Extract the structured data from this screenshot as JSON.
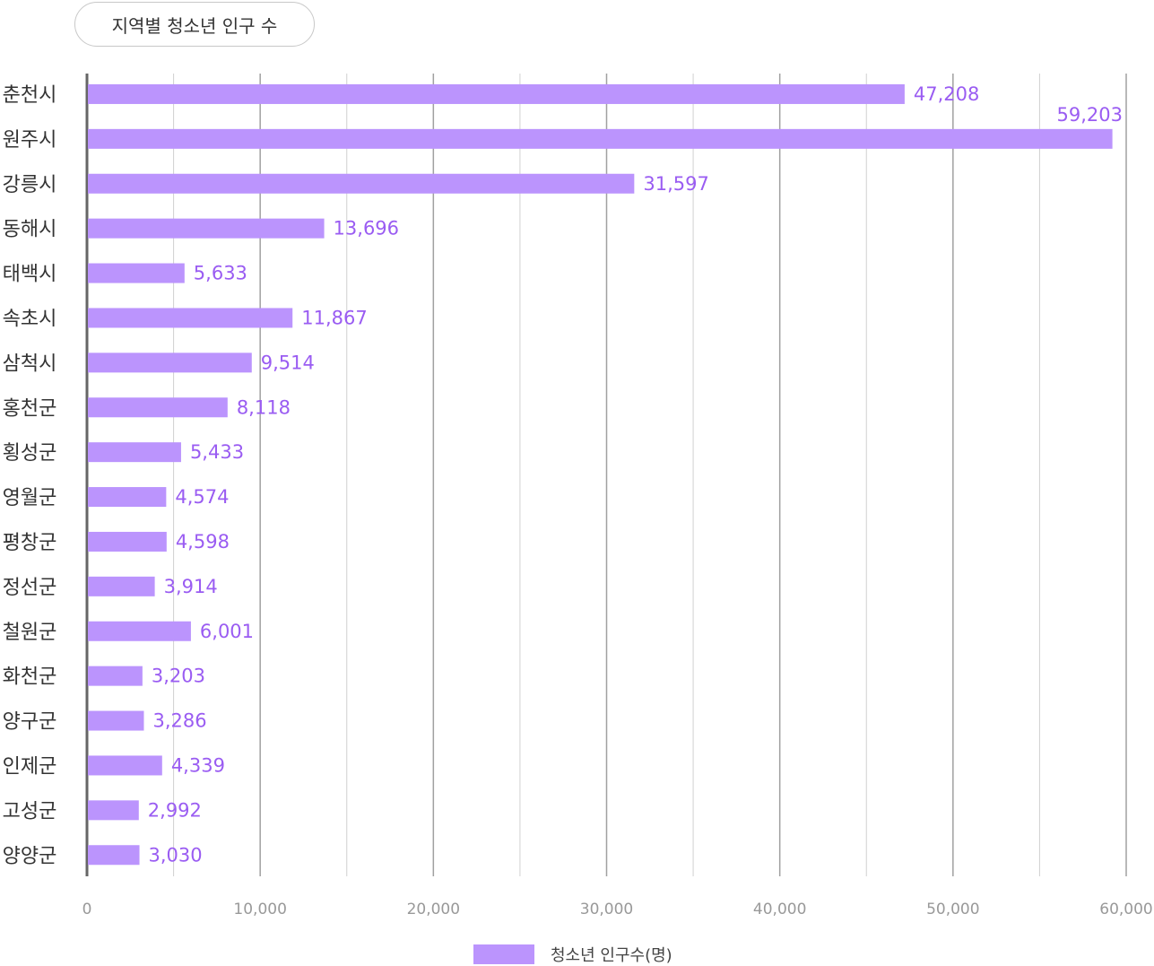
{
  "chart_data": {
    "type": "bar",
    "orientation": "horizontal",
    "title": "지역별 청소년 인구 수",
    "categories": [
      "춘천시",
      "원주시",
      "강릉시",
      "동해시",
      "태백시",
      "속초시",
      "삼척시",
      "홍천군",
      "횡성군",
      "영월군",
      "평창군",
      "정선군",
      "철원군",
      "화천군",
      "양구군",
      "인제군",
      "고성군",
      "양양군"
    ],
    "series": [
      {
        "name": "청소년 인구수(명)",
        "values": [
          47208,
          59203,
          31597,
          13696,
          5633,
          11867,
          9514,
          8118,
          5433,
          4574,
          4598,
          3914,
          6001,
          3203,
          3286,
          4339,
          2992,
          3030
        ],
        "labels": [
          "47,208",
          "59,203",
          "31,597",
          "13,696",
          "5,633",
          "11,867",
          "9,514",
          "8,118",
          "5,433",
          "4,574",
          "4,598",
          "3,914",
          "6,001",
          "3,203",
          "3,286",
          "4,339",
          "2,992",
          "3,030"
        ]
      }
    ],
    "xlim": [
      0,
      60000
    ],
    "xticks": [
      0,
      10000,
      20000,
      30000,
      40000,
      50000,
      60000
    ],
    "xtick_labels": [
      "0",
      "10,000",
      "20,000",
      "30,000",
      "40,000",
      "50,000",
      "60,000"
    ],
    "grid": true,
    "legend_position": "bottom",
    "colors": {
      "bar": "#bb94fd",
      "value_label": "#9a5cf2",
      "grid_major": "#a0a0a0",
      "grid_minor": "#d0d0d0",
      "axis": "#666666"
    }
  }
}
